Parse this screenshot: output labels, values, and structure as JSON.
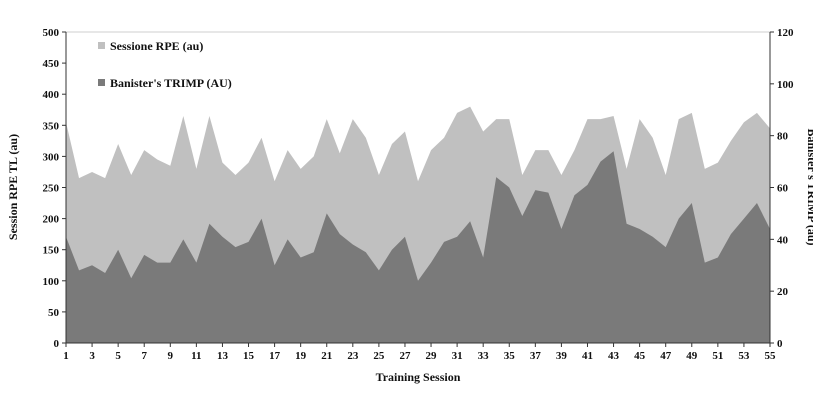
{
  "chart_data": {
    "type": "area",
    "xlabel": "Training Session",
    "ylabel_left": "Session RPE TL (au)",
    "ylabel_right": "Banister's TRIMP (au)",
    "ylim_left": [
      0,
      500
    ],
    "yticks_left": [
      "0",
      "50",
      "100",
      "150",
      "200",
      "250",
      "300",
      "350",
      "400",
      "450",
      "500"
    ],
    "ylim_right": [
      0,
      120
    ],
    "yticks_right": [
      "0",
      "20",
      "40",
      "60",
      "80",
      "100",
      "120"
    ],
    "xlim": [
      1,
      55
    ],
    "xticks": [
      "1",
      "3",
      "5",
      "7",
      "9",
      "11",
      "13",
      "15",
      "17",
      "19",
      "21",
      "23",
      "25",
      "27",
      "29",
      "31",
      "33",
      "35",
      "37",
      "39",
      "41",
      "43",
      "45",
      "47",
      "49",
      "51",
      "53",
      "55"
    ],
    "legend_position": "top-left",
    "grid": false,
    "x": [
      1,
      2,
      3,
      4,
      5,
      6,
      7,
      8,
      9,
      10,
      11,
      12,
      13,
      14,
      15,
      16,
      17,
      18,
      19,
      20,
      21,
      22,
      23,
      24,
      25,
      26,
      27,
      28,
      29,
      30,
      31,
      32,
      33,
      34,
      35,
      36,
      37,
      38,
      39,
      40,
      41,
      42,
      43,
      44,
      45,
      46,
      47,
      48,
      49,
      50,
      51,
      52,
      53,
      54,
      55
    ],
    "series": [
      {
        "name": "Sessione RPE (au)",
        "axis": "left",
        "color": "#c0c0c0",
        "values": [
          355,
          265,
          275,
          265,
          320,
          270,
          310,
          295,
          285,
          365,
          280,
          365,
          290,
          270,
          290,
          330,
          260,
          310,
          280,
          300,
          360,
          305,
          360,
          330,
          270,
          320,
          340,
          260,
          310,
          330,
          370,
          380,
          340,
          360,
          360,
          270,
          310,
          310,
          270,
          310,
          360,
          360,
          365,
          280,
          360,
          330,
          270,
          360,
          370,
          280,
          290,
          325,
          355,
          370,
          345
        ]
      },
      {
        "name": "Banister's TRIMP (AU)",
        "axis": "right",
        "color": "#7a7a7a",
        "values": [
          41,
          28,
          30,
          27,
          36,
          25,
          34,
          31,
          31,
          40,
          31,
          46,
          41,
          37,
          39,
          48,
          30,
          40,
          33,
          35,
          50,
          42,
          38,
          35,
          28,
          36,
          41,
          24,
          31,
          39,
          41,
          47,
          33,
          64,
          60,
          49,
          59,
          58,
          44,
          57,
          61,
          70,
          74,
          46,
          44,
          41,
          37,
          48,
          54,
          31,
          33,
          42,
          48,
          54,
          44
        ]
      }
    ]
  }
}
